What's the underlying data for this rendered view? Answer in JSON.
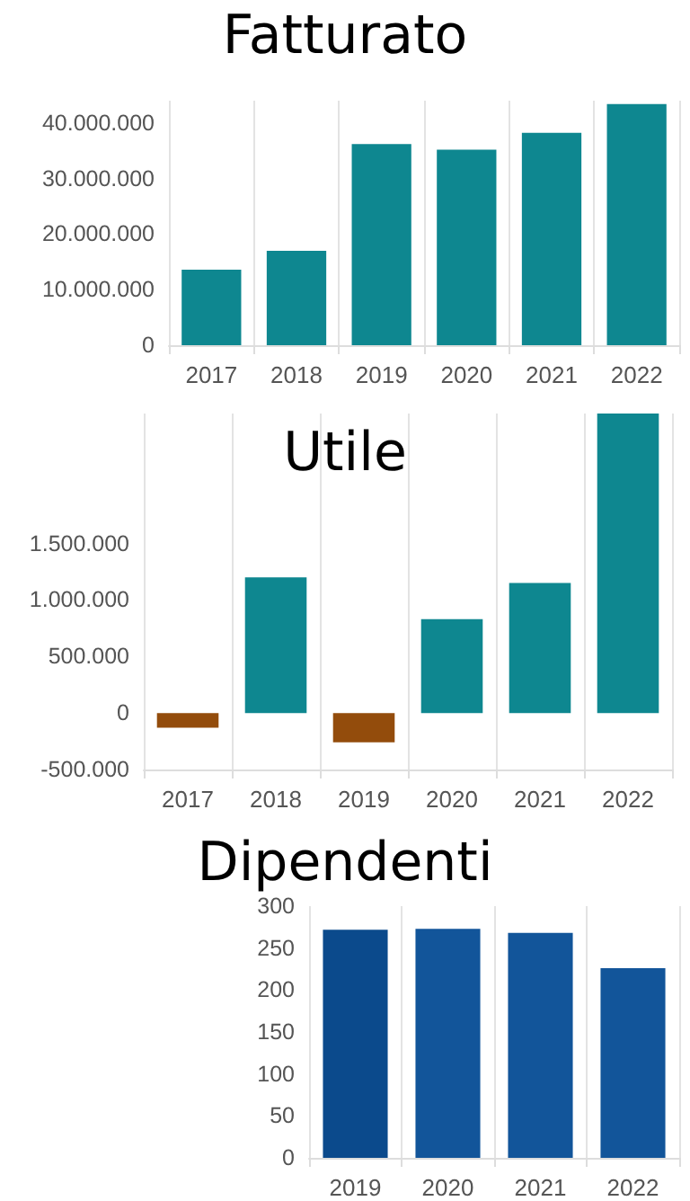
{
  "chart_data": [
    {
      "type": "bar",
      "title": "Fatturato",
      "categories": [
        "2017",
        "2018",
        "2019",
        "2020",
        "2021",
        "2022"
      ],
      "values": [
        13600000,
        17000000,
        36200000,
        35200000,
        38200000,
        43400000
      ],
      "color": "#0e8790",
      "ylim": [
        0,
        44000000
      ],
      "yticks": [
        {
          "value": 0,
          "label": "0"
        },
        {
          "value": 10000000,
          "label": "10.000.000"
        },
        {
          "value": 20000000,
          "label": "20.000.000"
        },
        {
          "value": 30000000,
          "label": "30.000.000"
        },
        {
          "value": 40000000,
          "label": "40.000.000"
        }
      ],
      "grid": "x"
    },
    {
      "type": "bar",
      "title": "Utile",
      "categories": [
        "2017",
        "2018",
        "2019",
        "2020",
        "2021",
        "2022"
      ],
      "values": [
        -130000,
        1200000,
        -260000,
        830000,
        1150000,
        2650000
      ],
      "colors": [
        "#934c0c",
        "#0e8790",
        "#934c0c",
        "#0e8790",
        "#0e8790",
        "#0e8790"
      ],
      "ylim": [
        -500000,
        2650000
      ],
      "yticks": [
        {
          "value": -500000,
          "label": "-500.000"
        },
        {
          "value": 0,
          "label": "0"
        },
        {
          "value": 500000,
          "label": "500.000"
        },
        {
          "value": 1000000,
          "label": "1.000.000"
        },
        {
          "value": 1500000,
          "label": "1.500.000"
        }
      ],
      "grid": "x"
    },
    {
      "type": "bar",
      "title": "Dipendenti",
      "categories": [
        "2019",
        "2020",
        "2021",
        "2022"
      ],
      "values": [
        272,
        273,
        268,
        226
      ],
      "colors": [
        "#0b4a8c",
        "#12559a",
        "#12559a",
        "#12559a"
      ],
      "ylim": [
        0,
        300
      ],
      "yticks": [
        0,
        50,
        100,
        150,
        200,
        250,
        300
      ],
      "grid": "x"
    }
  ]
}
